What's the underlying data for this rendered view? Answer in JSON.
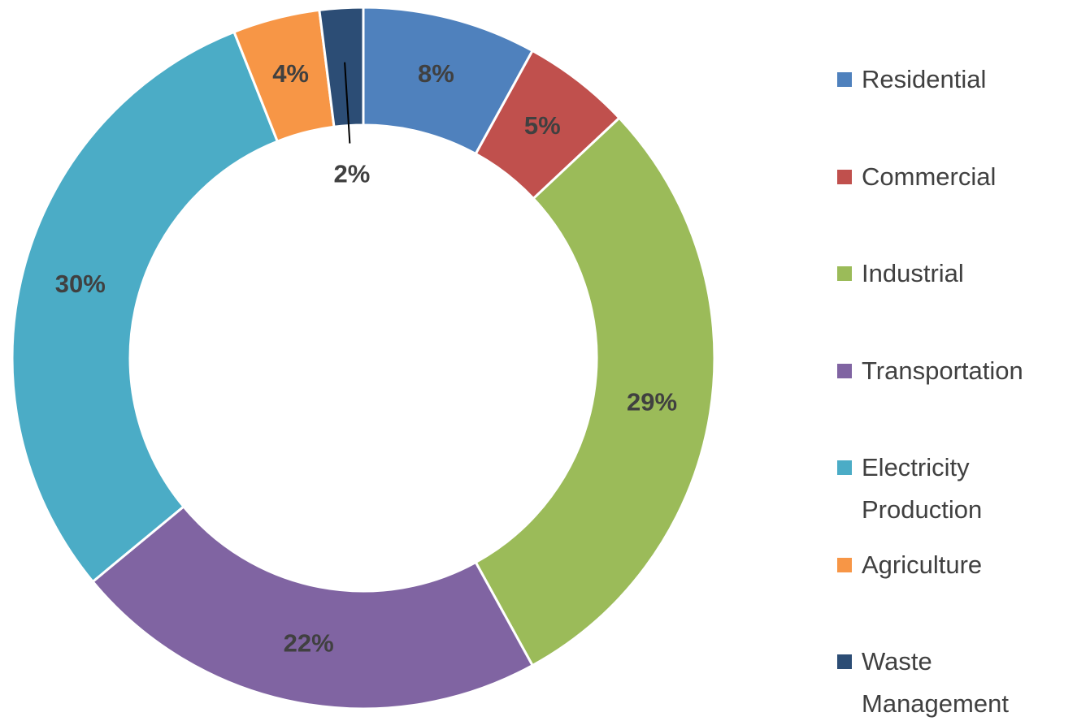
{
  "chart_data": {
    "type": "donut",
    "categories": [
      "Residential",
      "Commercial",
      "Industrial",
      "Transportation",
      "Electricity Production",
      "Agriculture",
      "Waste Management"
    ],
    "values": [
      8,
      5,
      29,
      22,
      30,
      4,
      2
    ],
    "value_labels": [
      "8%",
      "5%",
      "29%",
      "22%",
      "30%",
      "4%",
      "2%"
    ],
    "colors": [
      "#4f81bd",
      "#c0504d",
      "#9bbb59",
      "#8064a2",
      "#4bacc6",
      "#f79646",
      "#2c4d75"
    ],
    "legend": "right"
  }
}
